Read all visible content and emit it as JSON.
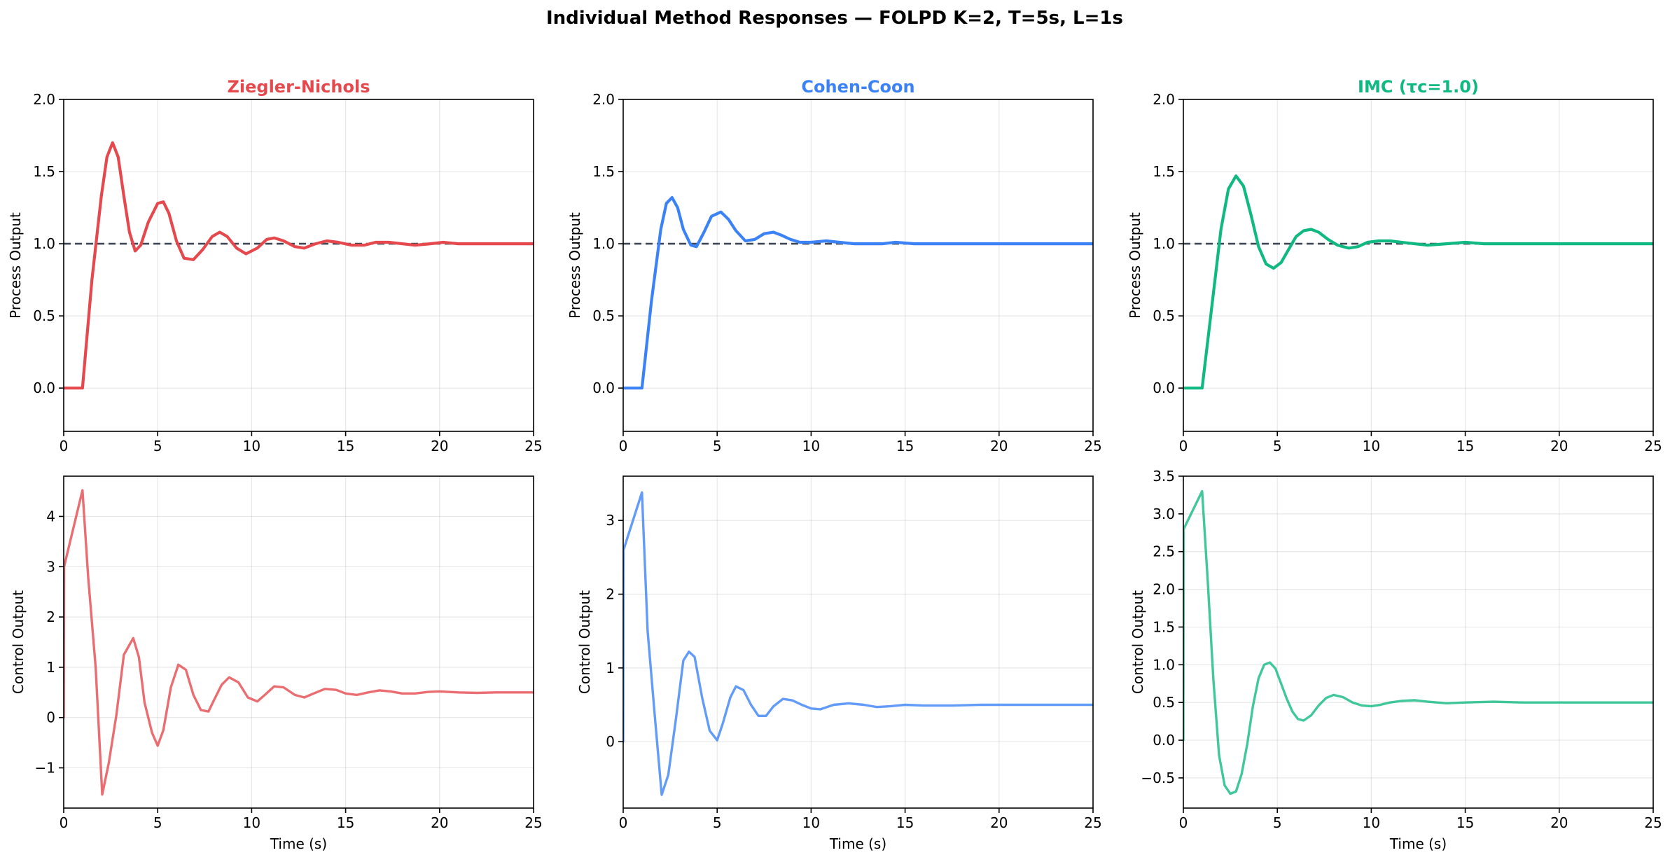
{
  "title": "Individual Method Responses  —  FOLPD K=2, T=5s, L=1s",
  "chart_data": [
    {
      "type": "line",
      "panel": "top",
      "title": "Ziegler-Nichols",
      "color": "#e5484d",
      "xlabel": "",
      "ylabel": "Process Output",
      "xlim": [
        0,
        25
      ],
      "ylim": [
        -0.3,
        2.0
      ],
      "xticks": [
        0,
        5,
        10,
        15,
        20,
        25
      ],
      "yticks": [
        0.0,
        0.5,
        1.0,
        1.5,
        2.0
      ],
      "ytick_labels": [
        "0.0",
        "0.5",
        "1.0",
        "1.5",
        "2.0"
      ],
      "grid": true,
      "setpoint": 1.0,
      "series": [
        {
          "x": [
            0,
            1.0,
            1.5,
            2.0,
            2.3,
            2.6,
            2.9,
            3.2,
            3.5,
            3.8,
            4.1,
            4.5,
            5.0,
            5.3,
            5.6,
            6.0,
            6.4,
            6.9,
            7.4,
            7.9,
            8.3,
            8.7,
            9.2,
            9.7,
            10.3,
            10.8,
            11.2,
            11.7,
            12.3,
            12.8,
            13.4,
            14.0,
            14.6,
            15.3,
            16.0,
            16.6,
            17.3,
            18.0,
            18.7,
            19.5,
            20.2,
            21.0,
            21.7,
            22.5,
            23.3,
            24.0,
            25.0
          ],
          "y": [
            0.0,
            0.0,
            0.75,
            1.33,
            1.6,
            1.7,
            1.6,
            1.33,
            1.08,
            0.95,
            0.99,
            1.15,
            1.28,
            1.29,
            1.21,
            1.02,
            0.9,
            0.89,
            0.96,
            1.05,
            1.08,
            1.05,
            0.97,
            0.93,
            0.97,
            1.03,
            1.04,
            1.02,
            0.98,
            0.97,
            1.0,
            1.02,
            1.01,
            0.99,
            0.99,
            1.01,
            1.01,
            1.0,
            0.99,
            1.0,
            1.01,
            1.0,
            1.0,
            1.0,
            1.0,
            1.0,
            1.0
          ]
        }
      ]
    },
    {
      "type": "line",
      "panel": "top",
      "title": "Cohen-Coon",
      "color": "#3b82f6",
      "xlabel": "",
      "ylabel": "Process Output",
      "xlim": [
        0,
        25
      ],
      "ylim": [
        -0.3,
        2.0
      ],
      "xticks": [
        0,
        5,
        10,
        15,
        20,
        25
      ],
      "yticks": [
        0.0,
        0.5,
        1.0,
        1.5,
        2.0
      ],
      "ytick_labels": [
        "0.0",
        "0.5",
        "1.0",
        "1.5",
        "2.0"
      ],
      "grid": true,
      "setpoint": 1.0,
      "series": [
        {
          "x": [
            0,
            1.0,
            1.5,
            2.0,
            2.3,
            2.6,
            2.9,
            3.2,
            3.6,
            3.9,
            4.3,
            4.7,
            5.2,
            5.6,
            6.0,
            6.5,
            7.0,
            7.5,
            8.0,
            8.4,
            8.9,
            9.4,
            10.0,
            10.8,
            11.5,
            12.3,
            13.0,
            13.8,
            14.5,
            15.5,
            16.5,
            18.0,
            20.0,
            22.0,
            25.0
          ],
          "y": [
            0.0,
            0.0,
            0.6,
            1.1,
            1.28,
            1.32,
            1.25,
            1.1,
            0.99,
            0.98,
            1.08,
            1.19,
            1.22,
            1.17,
            1.09,
            1.02,
            1.03,
            1.07,
            1.08,
            1.06,
            1.03,
            1.01,
            1.01,
            1.02,
            1.01,
            1.0,
            1.0,
            1.0,
            1.01,
            1.0,
            1.0,
            1.0,
            1.0,
            1.0,
            1.0
          ]
        }
      ]
    },
    {
      "type": "line",
      "panel": "top",
      "title": "IMC (τc=1.0)",
      "color": "#10b981",
      "xlabel": "",
      "ylabel": "Process Output",
      "xlim": [
        0,
        25
      ],
      "ylim": [
        -0.3,
        2.0
      ],
      "xticks": [
        0,
        5,
        10,
        15,
        20,
        25
      ],
      "yticks": [
        0.0,
        0.5,
        1.0,
        1.5,
        2.0
      ],
      "ytick_labels": [
        "0.0",
        "0.5",
        "1.0",
        "1.5",
        "2.0"
      ],
      "grid": true,
      "setpoint": 1.0,
      "series": [
        {
          "x": [
            0,
            1.0,
            1.5,
            2.0,
            2.4,
            2.8,
            3.2,
            3.6,
            4.0,
            4.4,
            4.8,
            5.2,
            5.6,
            6.0,
            6.4,
            6.8,
            7.2,
            7.7,
            8.2,
            8.8,
            9.3,
            9.8,
            10.4,
            11.0,
            11.6,
            12.3,
            13.0,
            14.0,
            15.0,
            16.0,
            18.0,
            20.0,
            22.5,
            25.0
          ],
          "y": [
            0.0,
            0.0,
            0.55,
            1.1,
            1.38,
            1.47,
            1.4,
            1.2,
            0.98,
            0.86,
            0.83,
            0.87,
            0.96,
            1.05,
            1.09,
            1.1,
            1.08,
            1.03,
            0.99,
            0.97,
            0.98,
            1.01,
            1.02,
            1.02,
            1.01,
            1.0,
            0.99,
            1.0,
            1.01,
            1.0,
            1.0,
            1.0,
            1.0,
            1.0
          ]
        }
      ]
    },
    {
      "type": "line",
      "panel": "bottom",
      "title": "",
      "color": "#e5484d",
      "xlabel": "Time (s)",
      "ylabel": "Control Output",
      "xlim": [
        0,
        25
      ],
      "ylim": [
        -1.8,
        4.8
      ],
      "xticks": [
        0,
        5,
        10,
        15,
        20,
        25
      ],
      "yticks": [
        -1,
        0,
        1,
        2,
        3,
        4
      ],
      "ytick_labels": [
        "−1",
        "0",
        "1",
        "2",
        "3",
        "4"
      ],
      "grid": true,
      "series": [
        {
          "x": [
            0,
            0.02,
            1.0,
            1.3,
            1.7,
            2.05,
            2.4,
            2.8,
            3.2,
            3.7,
            4.0,
            4.3,
            4.7,
            5.0,
            5.3,
            5.7,
            6.1,
            6.5,
            6.9,
            7.3,
            7.7,
            8.0,
            8.4,
            8.8,
            9.3,
            9.8,
            10.3,
            10.7,
            11.2,
            11.7,
            12.3,
            12.8,
            13.3,
            13.9,
            14.5,
            15.0,
            15.6,
            16.2,
            16.8,
            17.4,
            18.0,
            18.7,
            19.4,
            20.0,
            21.0,
            22.0,
            23.0,
            24.0,
            25.0
          ],
          "y": [
            0.0,
            3.0,
            4.52,
            2.8,
            1.0,
            -1.53,
            -0.9,
            0.05,
            1.25,
            1.58,
            1.2,
            0.3,
            -0.3,
            -0.56,
            -0.25,
            0.6,
            1.05,
            0.95,
            0.45,
            0.15,
            0.12,
            0.35,
            0.65,
            0.8,
            0.7,
            0.4,
            0.32,
            0.45,
            0.62,
            0.6,
            0.45,
            0.4,
            0.48,
            0.57,
            0.55,
            0.48,
            0.45,
            0.5,
            0.54,
            0.52,
            0.48,
            0.48,
            0.51,
            0.52,
            0.5,
            0.49,
            0.5,
            0.5,
            0.5
          ]
        }
      ]
    },
    {
      "type": "line",
      "panel": "bottom",
      "title": "",
      "color": "#3b82f6",
      "xlabel": "Time (s)",
      "ylabel": "Control Output",
      "xlim": [
        0,
        25
      ],
      "ylim": [
        -0.9,
        3.6
      ],
      "xticks": [
        0,
        5,
        10,
        15,
        20,
        25
      ],
      "yticks": [
        0,
        1,
        2,
        3
      ],
      "ytick_labels": [
        "0",
        "1",
        "2",
        "3"
      ],
      "grid": true,
      "series": [
        {
          "x": [
            0,
            0.02,
            1.0,
            1.3,
            1.7,
            2.05,
            2.4,
            2.8,
            3.2,
            3.5,
            3.8,
            4.2,
            4.6,
            5.0,
            5.3,
            5.7,
            6.0,
            6.4,
            6.8,
            7.2,
            7.6,
            8.0,
            8.5,
            9.0,
            9.5,
            10.0,
            10.5,
            11.2,
            12.0,
            12.8,
            13.5,
            14.2,
            15.0,
            16.0,
            17.5,
            19.0,
            21.0,
            23.0,
            25.0
          ],
          "y": [
            0.0,
            2.6,
            3.38,
            1.5,
            0.3,
            -0.72,
            -0.45,
            0.3,
            1.1,
            1.22,
            1.15,
            0.6,
            0.15,
            0.02,
            0.25,
            0.6,
            0.75,
            0.7,
            0.5,
            0.35,
            0.35,
            0.48,
            0.58,
            0.56,
            0.5,
            0.45,
            0.44,
            0.5,
            0.52,
            0.5,
            0.47,
            0.48,
            0.5,
            0.49,
            0.49,
            0.5,
            0.5,
            0.5,
            0.5
          ]
        }
      ]
    },
    {
      "type": "line",
      "panel": "bottom",
      "title": "",
      "color": "#10b981",
      "xlabel": "Time (s)",
      "ylabel": "Control Output",
      "xlim": [
        0,
        25
      ],
      "ylim": [
        -0.9,
        3.5
      ],
      "xticks": [
        0,
        5,
        10,
        15,
        20,
        25
      ],
      "yticks": [
        -0.5,
        0.0,
        0.5,
        1.0,
        1.5,
        2.0,
        2.5,
        3.0,
        3.5
      ],
      "ytick_labels": [
        "−0.5",
        "0.0",
        "0.5",
        "1.0",
        "1.5",
        "2.0",
        "2.5",
        "3.0",
        "3.5"
      ],
      "grid": true,
      "series": [
        {
          "x": [
            0,
            0.02,
            1.0,
            1.3,
            1.6,
            1.9,
            2.2,
            2.5,
            2.8,
            3.1,
            3.4,
            3.7,
            4.0,
            4.3,
            4.6,
            4.9,
            5.2,
            5.5,
            5.8,
            6.1,
            6.4,
            6.8,
            7.2,
            7.6,
            8.0,
            8.5,
            9.0,
            9.5,
            10.0,
            10.5,
            11.0,
            11.6,
            12.3,
            13.0,
            14.0,
            15.0,
            16.5,
            18.0,
            20.0,
            22.5,
            25.0
          ],
          "y": [
            0.0,
            2.8,
            3.3,
            2.1,
            0.8,
            -0.2,
            -0.6,
            -0.71,
            -0.68,
            -0.45,
            -0.05,
            0.45,
            0.82,
            1.0,
            1.03,
            0.95,
            0.75,
            0.55,
            0.38,
            0.28,
            0.26,
            0.33,
            0.46,
            0.56,
            0.6,
            0.57,
            0.5,
            0.46,
            0.45,
            0.47,
            0.5,
            0.52,
            0.53,
            0.51,
            0.49,
            0.5,
            0.51,
            0.5,
            0.5,
            0.5,
            0.5
          ]
        }
      ]
    }
  ]
}
